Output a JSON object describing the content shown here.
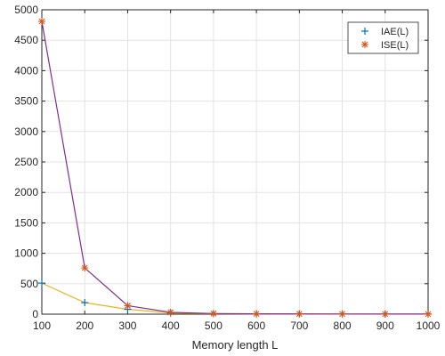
{
  "chart_data": {
    "type": "line",
    "title": "",
    "xlabel": "Memory length L",
    "ylabel": "",
    "x": [
      100,
      200,
      300,
      400,
      500,
      600,
      700,
      800,
      900,
      1000
    ],
    "xlim": [
      100,
      1000
    ],
    "ylim": [
      0,
      5000
    ],
    "xticks": [
      100,
      200,
      300,
      400,
      500,
      600,
      700,
      800,
      900,
      1000
    ],
    "yticks": [
      0,
      500,
      1000,
      1500,
      2000,
      2500,
      3000,
      3500,
      4000,
      4500,
      5000
    ],
    "grid": true,
    "legend_position": "top-right",
    "series": [
      {
        "name": "IAE(L)",
        "marker": "+",
        "marker_color": "#0072BD",
        "line_color": "#EDB120",
        "values": [
          510,
          190,
          80,
          20,
          8,
          5,
          4,
          3,
          2,
          2
        ]
      },
      {
        "name": "ISE(L)",
        "marker": "*",
        "marker_color": "#D95319",
        "line_color": "#7E2F8E",
        "values": [
          4810,
          760,
          140,
          30,
          10,
          5,
          4,
          3,
          2,
          2
        ]
      }
    ]
  }
}
